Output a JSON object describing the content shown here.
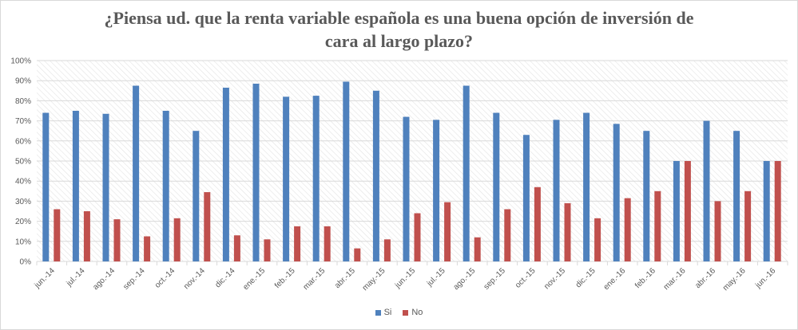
{
  "chart_data": {
    "type": "bar",
    "title_lines": [
      "¿Piensa ud. que la renta variable española es una buena opción de inversión de",
      "cara al largo plazo?"
    ],
    "categories": [
      "jun.-14",
      "jul.-14",
      "ago.-14",
      "sep.-14",
      "oct.-14",
      "nov.-14",
      "dic.-14",
      "ene.-15",
      "feb.-15",
      "mar.-15",
      "abr.-15",
      "may.-15",
      "jun.-15",
      "jul.-15",
      "ago.-15",
      "sep.-15",
      "oct.-15",
      "nov.-15",
      "dic.-15",
      "ene.-16",
      "feb.-16",
      "mar.-16",
      "abr.-16",
      "may.-16",
      "jun.-16"
    ],
    "series": [
      {
        "name": "Si",
        "color": "#4f81bd",
        "values": [
          74,
          75,
          73.5,
          87.5,
          75,
          65,
          86.5,
          88.5,
          82,
          82.5,
          89.5,
          85,
          72,
          70.5,
          87.5,
          74,
          63,
          70.5,
          74,
          68.5,
          65,
          50,
          70,
          65,
          50
        ]
      },
      {
        "name": "No",
        "color": "#c0504d",
        "values": [
          26,
          25,
          21,
          12.5,
          21.5,
          34.5,
          13,
          11,
          17.5,
          17.5,
          6.5,
          11,
          24,
          29.5,
          12,
          26,
          37,
          29,
          21.5,
          31.5,
          35,
          50,
          30,
          35,
          50
        ]
      }
    ],
    "ylim": [
      0,
      100
    ],
    "yticks": [
      0,
      10,
      20,
      30,
      40,
      50,
      60,
      70,
      80,
      90,
      100
    ],
    "ytick_labels": [
      "0%",
      "10%",
      "20%",
      "30%",
      "40%",
      "50%",
      "60%",
      "70%",
      "80%",
      "90%",
      "100%"
    ],
    "grid": true,
    "legend_position": "bottom"
  }
}
